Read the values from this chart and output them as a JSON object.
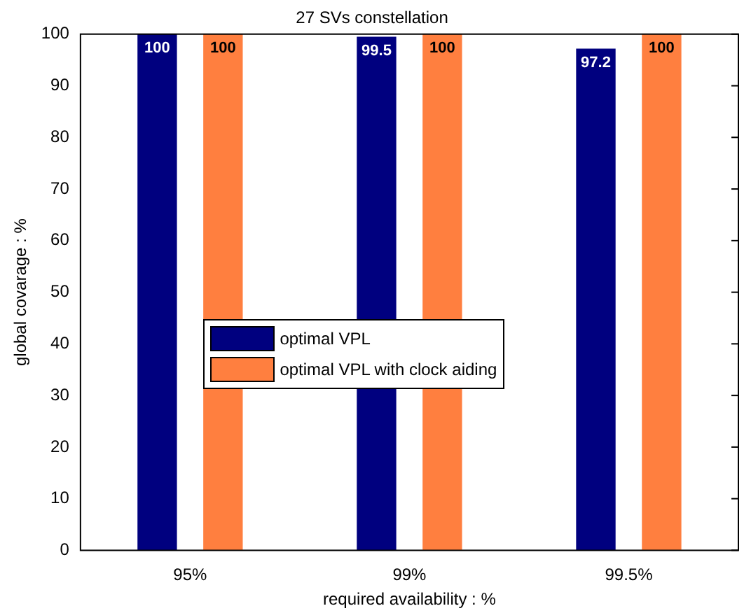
{
  "chart_data": {
    "type": "bar",
    "title": "27 SVs constellation",
    "xlabel": "required availability : %",
    "ylabel": "global covarage : %",
    "categories": [
      "95%",
      "99%",
      "99.5%"
    ],
    "series": [
      {
        "name": "optimal VPL",
        "color": "#00007f",
        "values": [
          100,
          99.5,
          97.2
        ]
      },
      {
        "name": "optimal VPL with clock aiding",
        "color": "#ff7f3f",
        "values": [
          100,
          100,
          100
        ]
      }
    ],
    "ylim": [
      0,
      100
    ],
    "yticks": [
      0,
      10,
      20,
      30,
      40,
      50,
      60,
      70,
      80,
      90,
      100
    ],
    "data_labels": true,
    "legend": "center",
    "grid": false
  }
}
